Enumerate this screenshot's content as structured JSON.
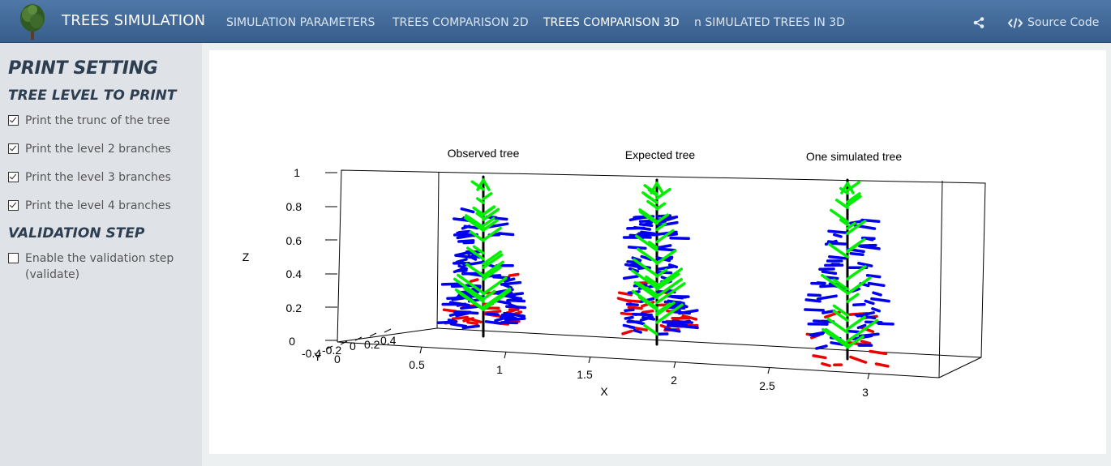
{
  "navbar": {
    "brand": "TREES SIMULATION",
    "items": [
      {
        "label": "SIMULATION PARAMETERS",
        "active": false
      },
      {
        "label": "TREES COMPARISON 2D",
        "active": false
      },
      {
        "label": "TREES COMPARISON 3D",
        "active": true
      },
      {
        "label": "n SIMULATED TREES IN 3D",
        "active": false
      }
    ],
    "share_icon": "share-icon",
    "source_code_label": "Source Code",
    "code_icon": "code-icon"
  },
  "sidebar": {
    "title": "PRINT SETTING",
    "tree_level_heading": "TREE LEVEL TO PRINT",
    "checkboxes": [
      {
        "label": "Print the trunc of the tree",
        "checked": true
      },
      {
        "label": "Print the level 2 branches",
        "checked": true
      },
      {
        "label": "Print the level 3 branches",
        "checked": true
      },
      {
        "label": "Print the level 4 branches",
        "checked": true
      }
    ],
    "validation_heading": "VALIDATION STEP",
    "validation_checkbox": {
      "label": "Enable the validation step",
      "label2": "(validate)",
      "checked": false
    }
  },
  "plot": {
    "titles": [
      "Observed tree",
      "Expected tree",
      "One simulated tree"
    ],
    "z_label": "Z",
    "x_label": "X",
    "z_ticks": [
      "1",
      "0.8",
      "0.6",
      "0.4",
      "0.2",
      "0"
    ],
    "x_ticks": [
      "0.5",
      "1",
      "1.5",
      "2",
      "2.5",
      "3"
    ],
    "y_ticks": [
      "-0.4",
      "-0.2",
      "0",
      "0.2",
      "0.4"
    ],
    "y_ticks_overlap": [
      "Y",
      "0"
    ],
    "colors": {
      "trunk": "#000000",
      "level2": "#00ee00",
      "level3": "#0000ee",
      "level4": "#ee0000"
    }
  }
}
